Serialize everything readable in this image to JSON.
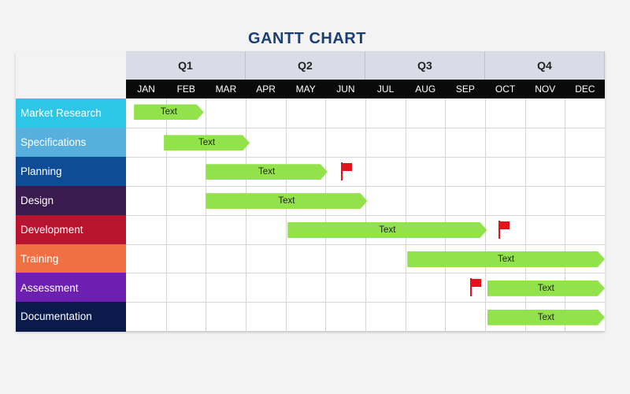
{
  "title": "GANTT CHART",
  "quarters": [
    "Q1",
    "Q2",
    "Q3",
    "Q4"
  ],
  "months": [
    "JAN",
    "FEB",
    "MAR",
    "APR",
    "MAY",
    "JUN",
    "JUL",
    "AUG",
    "SEP",
    "OCT",
    "NOV",
    "DEC"
  ],
  "colors": {
    "quarter_bg": "#d9dbe6",
    "month_bg": "#0a0a0a",
    "bar": "#92e34b",
    "flag": "#e3131b",
    "title": "#1b3f73"
  },
  "tasks": [
    {
      "name": "Market Research",
      "color": "#2ec6e8",
      "start": 0.2,
      "end": 1.95,
      "label": "Text",
      "flag": null
    },
    {
      "name": "Specifications",
      "color": "#56afdc",
      "start": 0.95,
      "end": 3.1,
      "label": "Text",
      "flag": null
    },
    {
      "name": "Planning",
      "color": "#0f4c96",
      "start": 2.0,
      "end": 5.05,
      "label": "Text",
      "flag": 5.4
    },
    {
      "name": "Design",
      "color": "#3a1a4f",
      "start": 2.0,
      "end": 6.05,
      "label": "Text",
      "flag": null
    },
    {
      "name": "Development",
      "color": "#b81430",
      "start": 4.05,
      "end": 9.05,
      "label": "Text",
      "flag": 9.35
    },
    {
      "name": "Training",
      "color": "#f07043",
      "start": 7.05,
      "end": 12.0,
      "label": "Text",
      "flag": null
    },
    {
      "name": "Assessment",
      "color": "#6d1fb2",
      "start": 9.05,
      "end": 12.0,
      "label": "Text",
      "flag": 8.65
    },
    {
      "name": "Documentation",
      "color": "#0a1a4a",
      "start": 9.05,
      "end": 12.0,
      "label": "Text",
      "flag": null
    }
  ]
}
